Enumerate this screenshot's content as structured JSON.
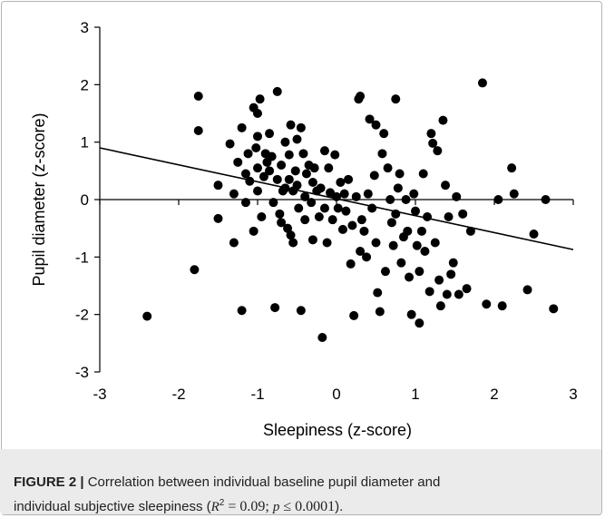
{
  "chart_data": {
    "type": "scatter",
    "title": "",
    "xlabel": "Sleepiness (z-score)",
    "ylabel": "Pupil diameter (z-score)",
    "xlim": [
      -3,
      3
    ],
    "ylim": [
      -3,
      3
    ],
    "xticks": [
      "-3",
      "-2",
      "-1",
      "0",
      "1",
      "2",
      "3"
    ],
    "yticks": [
      "3",
      "2",
      "1",
      "0",
      "-1",
      "-2",
      "-3"
    ],
    "grid": false,
    "trendline": {
      "x": [
        -3,
        3
      ],
      "y": [
        0.9,
        -0.87
      ]
    },
    "points": [
      [
        -2.4,
        -2.03
      ],
      [
        -1.8,
        -1.22
      ],
      [
        -1.75,
        1.8
      ],
      [
        -1.75,
        1.2
      ],
      [
        -1.5,
        0.25
      ],
      [
        -1.5,
        -0.33
      ],
      [
        -1.35,
        0.97
      ],
      [
        -1.3,
        -0.75
      ],
      [
        -1.3,
        0.1
      ],
      [
        -1.25,
        0.65
      ],
      [
        -1.2,
        -1.93
      ],
      [
        -1.2,
        1.25
      ],
      [
        -1.15,
        0.45
      ],
      [
        -1.15,
        -0.05
      ],
      [
        -1.12,
        0.8
      ],
      [
        -1.1,
        0.32
      ],
      [
        -1.05,
        1.6
      ],
      [
        -1.05,
        -0.55
      ],
      [
        -1.02,
        0.9
      ],
      [
        -1.0,
        1.1
      ],
      [
        -1.0,
        1.5
      ],
      [
        -1.0,
        0.55
      ],
      [
        -1.0,
        0.15
      ],
      [
        -0.97,
        1.75
      ],
      [
        -0.95,
        -0.3
      ],
      [
        -0.92,
        0.4
      ],
      [
        -0.9,
        0.8
      ],
      [
        -0.88,
        0.65
      ],
      [
        -0.85,
        0.5
      ],
      [
        -0.85,
        1.15
      ],
      [
        -0.82,
        0.75
      ],
      [
        -0.8,
        -0.05
      ],
      [
        -0.78,
        -1.88
      ],
      [
        -0.75,
        1.88
      ],
      [
        -0.75,
        0.35
      ],
      [
        -0.72,
        -0.25
      ],
      [
        -0.7,
        0.6
      ],
      [
        -0.7,
        -0.4
      ],
      [
        -0.68,
        0.15
      ],
      [
        -0.65,
        1.0
      ],
      [
        -0.65,
        0.2
      ],
      [
        -0.62,
        -0.5
      ],
      [
        -0.6,
        0.78
      ],
      [
        -0.6,
        0.35
      ],
      [
        -0.58,
        1.3
      ],
      [
        -0.58,
        -0.62
      ],
      [
        -0.55,
        0.15
      ],
      [
        -0.55,
        -0.75
      ],
      [
        -0.52,
        0.5
      ],
      [
        -0.5,
        1.05
      ],
      [
        -0.5,
        0.25
      ],
      [
        -0.48,
        -0.15
      ],
      [
        -0.45,
        1.25
      ],
      [
        -0.45,
        -1.93
      ],
      [
        -0.42,
        0.8
      ],
      [
        -0.4,
        0.05
      ],
      [
        -0.4,
        -0.35
      ],
      [
        -0.38,
        0.45
      ],
      [
        -0.35,
        0.6
      ],
      [
        -0.32,
        -0.05
      ],
      [
        -0.3,
        0.3
      ],
      [
        -0.3,
        -0.7
      ],
      [
        -0.28,
        0.55
      ],
      [
        -0.25,
        0.15
      ],
      [
        -0.22,
        -0.3
      ],
      [
        -0.2,
        0.2
      ],
      [
        -0.18,
        -2.4
      ],
      [
        -0.15,
        0.85
      ],
      [
        -0.15,
        -0.15
      ],
      [
        -0.12,
        -0.75
      ],
      [
        -0.1,
        0.55
      ],
      [
        -0.08,
        0.12
      ],
      [
        -0.05,
        -0.35
      ],
      [
        -0.02,
        0.78
      ],
      [
        0.0,
        0.05
      ],
      [
        0.02,
        -0.15
      ],
      [
        0.05,
        0.3
      ],
      [
        0.08,
        -0.52
      ],
      [
        0.1,
        0.1
      ],
      [
        0.12,
        -0.2
      ],
      [
        0.15,
        0.35
      ],
      [
        0.18,
        -1.12
      ],
      [
        0.2,
        -0.45
      ],
      [
        0.22,
        -2.02
      ],
      [
        0.25,
        0.05
      ],
      [
        0.28,
        1.75
      ],
      [
        0.3,
        1.8
      ],
      [
        0.3,
        -0.9
      ],
      [
        0.32,
        -0.35
      ],
      [
        0.35,
        -0.55
      ],
      [
        0.38,
        -1.0
      ],
      [
        0.4,
        0.1
      ],
      [
        0.42,
        1.4
      ],
      [
        0.45,
        -0.15
      ],
      [
        0.48,
        0.42
      ],
      [
        0.5,
        1.3
      ],
      [
        0.5,
        -0.75
      ],
      [
        0.52,
        -1.62
      ],
      [
        0.55,
        -1.95
      ],
      [
        0.58,
        0.8
      ],
      [
        0.6,
        1.15
      ],
      [
        0.62,
        -1.25
      ],
      [
        0.65,
        0.55
      ],
      [
        0.68,
        0.0
      ],
      [
        0.7,
        -0.4
      ],
      [
        0.72,
        -0.8
      ],
      [
        0.75,
        1.75
      ],
      [
        0.75,
        -0.25
      ],
      [
        0.78,
        0.2
      ],
      [
        0.8,
        0.45
      ],
      [
        0.82,
        -1.1
      ],
      [
        0.85,
        -0.65
      ],
      [
        0.88,
        0.0
      ],
      [
        0.9,
        -0.55
      ],
      [
        0.92,
        -1.35
      ],
      [
        0.95,
        -2.0
      ],
      [
        0.98,
        0.1
      ],
      [
        1.0,
        -0.2
      ],
      [
        1.02,
        -0.8
      ],
      [
        1.05,
        -1.25
      ],
      [
        1.05,
        -2.15
      ],
      [
        1.08,
        -0.55
      ],
      [
        1.1,
        0.45
      ],
      [
        1.12,
        -0.9
      ],
      [
        1.15,
        -0.3
      ],
      [
        1.18,
        -1.6
      ],
      [
        1.2,
        1.15
      ],
      [
        1.22,
        0.98
      ],
      [
        1.25,
        -0.75
      ],
      [
        1.28,
        0.85
      ],
      [
        1.3,
        -1.4
      ],
      [
        1.32,
        -1.85
      ],
      [
        1.35,
        1.38
      ],
      [
        1.38,
        0.25
      ],
      [
        1.4,
        -1.65
      ],
      [
        1.42,
        -0.3
      ],
      [
        1.45,
        -1.3
      ],
      [
        1.48,
        -1.1
      ],
      [
        1.52,
        0.05
      ],
      [
        1.55,
        -1.65
      ],
      [
        1.6,
        -0.25
      ],
      [
        1.65,
        -1.55
      ],
      [
        1.7,
        -0.55
      ],
      [
        1.85,
        2.03
      ],
      [
        1.9,
        -1.82
      ],
      [
        2.05,
        0.0
      ],
      [
        2.1,
        -1.85
      ],
      [
        2.22,
        0.55
      ],
      [
        2.25,
        0.1
      ],
      [
        2.42,
        -1.57
      ],
      [
        2.5,
        -0.6
      ],
      [
        2.65,
        0.0
      ],
      [
        2.75,
        -1.9
      ]
    ]
  },
  "caption": {
    "figure_label": "FIGURE 2 |",
    "text_line1": " Correlation between individual baseline pupil diameter and",
    "text_line2": "individual subjective sleepiness (",
    "r_symbol": "R",
    "r_exp": "2",
    "r_value": " = 0.09; ",
    "p_symbol": "p",
    "p_value": " ≤ 0.0001",
    "text_end": ")."
  }
}
